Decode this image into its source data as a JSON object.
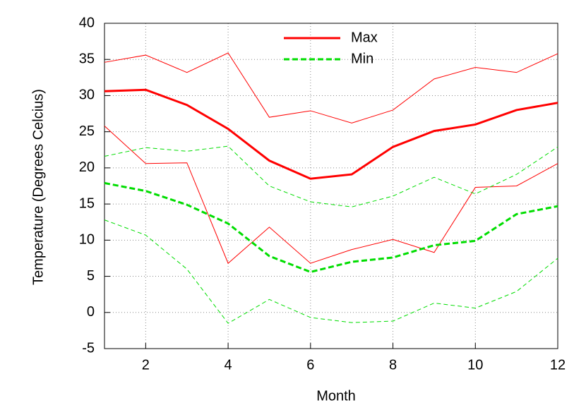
{
  "chart_data": {
    "type": "line",
    "x_label": "Month",
    "y_label": "Temperature (Degrees Celcius)",
    "x": [
      1,
      2,
      3,
      4,
      5,
      6,
      7,
      8,
      9,
      10,
      11,
      12
    ],
    "xlim": [
      1,
      12
    ],
    "xticks": [
      2,
      4,
      6,
      8,
      10,
      12
    ],
    "ylim": [
      -5,
      40
    ],
    "yticks": [
      -5,
      0,
      5,
      10,
      15,
      20,
      25,
      30,
      35,
      40
    ],
    "grid": true,
    "legend": "upper center",
    "series": [
      {
        "color": "#ff0000",
        "line_width": 1,
        "dash": false,
        "values": [
          34.6,
          35.6,
          33.2,
          35.9,
          27.0,
          27.9,
          26.2,
          28.0,
          32.3,
          33.9,
          33.2,
          35.8
        ]
      },
      {
        "color": "#ff0000",
        "line_width": 1,
        "dash": false,
        "values": [
          25.8,
          20.6,
          20.7,
          6.8,
          11.8,
          6.8,
          8.7,
          10.1,
          8.3,
          17.3,
          17.5,
          20.6
        ]
      },
      {
        "color": "#00dd00",
        "line_width": 1,
        "dash": true,
        "values": [
          21.6,
          22.8,
          22.3,
          23.0,
          17.5,
          15.3,
          14.6,
          16.1,
          18.7,
          16.4,
          19.1,
          22.9
        ]
      },
      {
        "color": "#00dd00",
        "line_width": 1,
        "dash": true,
        "values": [
          12.8,
          10.7,
          6.0,
          -1.5,
          1.8,
          -0.7,
          -1.4,
          -1.2,
          1.3,
          0.6,
          2.9,
          7.5
        ]
      },
      {
        "name": "Max",
        "color": "#ff0000",
        "line_width": 3,
        "dash": false,
        "values": [
          30.6,
          30.8,
          28.7,
          25.4,
          21.0,
          18.5,
          19.1,
          22.9,
          25.1,
          26.0,
          28.0,
          29.0
        ]
      },
      {
        "name": "Min",
        "color": "#00dd00",
        "line_width": 3,
        "dash": true,
        "values": [
          17.9,
          16.8,
          14.9,
          12.3,
          7.8,
          5.6,
          7.0,
          7.6,
          9.3,
          9.9,
          13.6,
          14.7
        ]
      }
    ]
  }
}
